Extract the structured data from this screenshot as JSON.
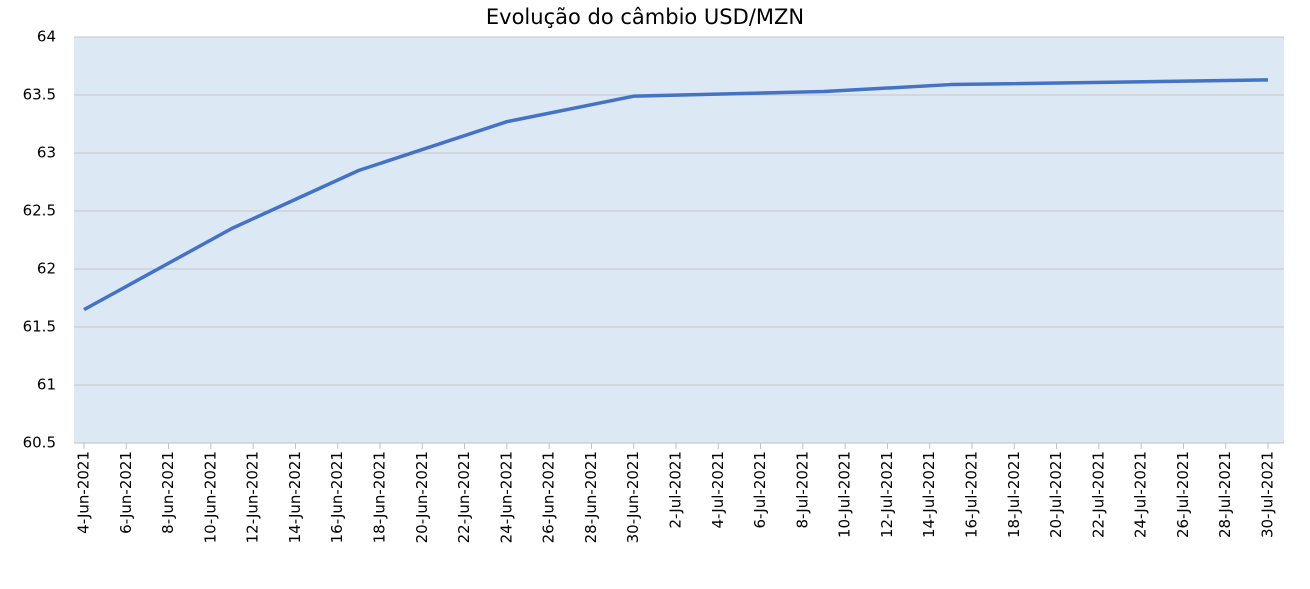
{
  "chart_data": {
    "type": "line",
    "title": "Evolução do câmbio USD/MZN",
    "x": [
      "2021-06-04",
      "2021-06-11",
      "2021-06-17",
      "2021-06-24",
      "2021-06-30",
      "2021-07-09",
      "2021-07-15",
      "2021-07-30"
    ],
    "series": [
      {
        "name": "USD/MZN",
        "color": "#4472c4",
        "values": [
          61.65,
          62.35,
          62.85,
          63.27,
          63.49,
          63.53,
          63.59,
          63.63
        ]
      }
    ],
    "xlim": [
      "2021-06-04",
      "2021-07-30"
    ],
    "xticks": [
      {
        "value": "2021-06-04",
        "label": "4-Jun-2021"
      },
      {
        "value": "2021-06-06",
        "label": "6-Jun-2021"
      },
      {
        "value": "2021-06-08",
        "label": "8-Jun-2021"
      },
      {
        "value": "2021-06-10",
        "label": "10-Jun-2021"
      },
      {
        "value": "2021-06-12",
        "label": "12-Jun-2021"
      },
      {
        "value": "2021-06-14",
        "label": "14-Jun-2021"
      },
      {
        "value": "2021-06-16",
        "label": "16-Jun-2021"
      },
      {
        "value": "2021-06-18",
        "label": "18-Jun-2021"
      },
      {
        "value": "2021-06-20",
        "label": "20-Jun-2021"
      },
      {
        "value": "2021-06-22",
        "label": "22-Jun-2021"
      },
      {
        "value": "2021-06-24",
        "label": "24-Jun-2021"
      },
      {
        "value": "2021-06-26",
        "label": "26-Jun-2021"
      },
      {
        "value": "2021-06-28",
        "label": "28-Jun-2021"
      },
      {
        "value": "2021-06-30",
        "label": "30-Jun-2021"
      },
      {
        "value": "2021-07-02",
        "label": "2-Jul-2021"
      },
      {
        "value": "2021-07-04",
        "label": "4-Jul-2021"
      },
      {
        "value": "2021-07-06",
        "label": "6-Jul-2021"
      },
      {
        "value": "2021-07-08",
        "label": "8-Jul-2021"
      },
      {
        "value": "2021-07-10",
        "label": "10-Jul-2021"
      },
      {
        "value": "2021-07-12",
        "label": "12-Jul-2021"
      },
      {
        "value": "2021-07-14",
        "label": "14-Jul-2021"
      },
      {
        "value": "2021-07-16",
        "label": "16-Jul-2021"
      },
      {
        "value": "2021-07-18",
        "label": "18-Jul-2021"
      },
      {
        "value": "2021-07-20",
        "label": "20-Jul-2021"
      },
      {
        "value": "2021-07-22",
        "label": "22-Jul-2021"
      },
      {
        "value": "2021-07-24",
        "label": "24-Jul-2021"
      },
      {
        "value": "2021-07-26",
        "label": "26-Jul-2021"
      },
      {
        "value": "2021-07-28",
        "label": "28-Jul-2021"
      },
      {
        "value": "2021-07-30",
        "label": "30-Jul-2021"
      }
    ],
    "ylim": [
      60.5,
      64
    ],
    "yticks": [
      60.5,
      61,
      61.5,
      62,
      62.5,
      63,
      63.5,
      64
    ],
    "grid": true
  }
}
